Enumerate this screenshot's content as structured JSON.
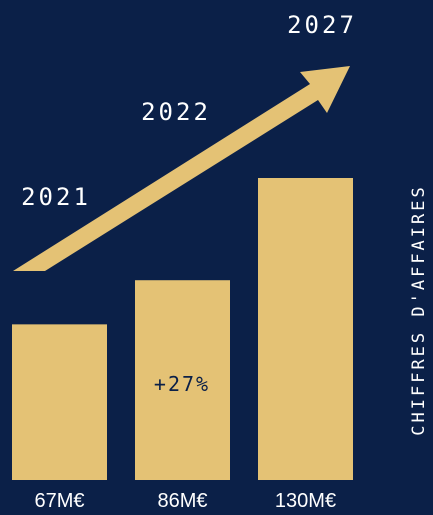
{
  "colors": {
    "background": "#0b2048",
    "bar": "#e4c275",
    "text": "#ffffff"
  },
  "chart_data": {
    "type": "bar",
    "categories": [
      "2021",
      "2022",
      "2027"
    ],
    "values": [
      67,
      86,
      130
    ],
    "value_labels": [
      "67M€",
      "86M€",
      "130M€"
    ],
    "unit": "M€",
    "ylim": [
      0,
      130
    ],
    "side_label": "CHIFFRES D'AFFAIRES",
    "growth_annotation": "+27%",
    "trend_arrow": true,
    "grid": false
  }
}
